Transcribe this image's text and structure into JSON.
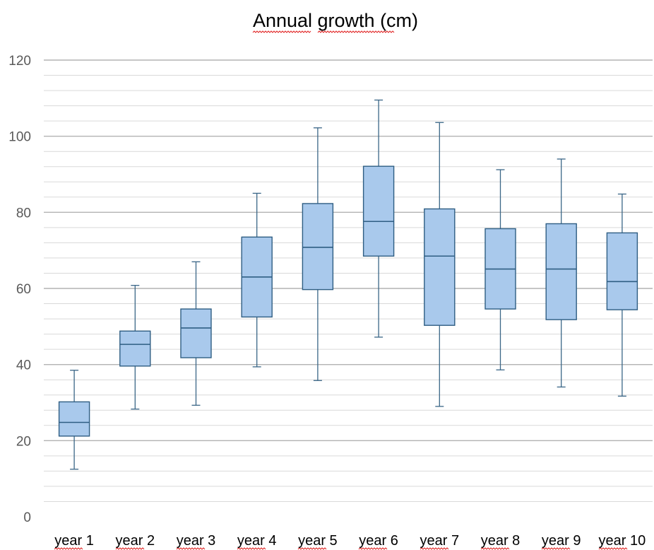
{
  "chart_data": {
    "type": "boxplot",
    "title": "Annual growth (cm)",
    "xlabel": "",
    "ylabel": "",
    "ylim": [
      0,
      120
    ],
    "y_major_ticks": [
      0,
      20,
      40,
      60,
      80,
      100,
      120
    ],
    "y_minor_step": 4,
    "grid": true,
    "legend": "none",
    "categories": [
      "year 1",
      "year 2",
      "year 3",
      "year 4",
      "year 5",
      "year 6",
      "year 7",
      "year 8",
      "year 9",
      "year 10"
    ],
    "series": [
      {
        "boxes": [
          {
            "min": 12.5,
            "q1": 21.2,
            "median": 24.8,
            "q3": 30.2,
            "max": 38.5
          },
          {
            "min": 28.3,
            "q1": 39.6,
            "median": 45.3,
            "q3": 48.8,
            "max": 60.8
          },
          {
            "min": 29.3,
            "q1": 41.8,
            "median": 49.6,
            "q3": 54.6,
            "max": 67.0
          },
          {
            "min": 39.4,
            "q1": 52.5,
            "median": 63.0,
            "q3": 73.5,
            "max": 85.0
          },
          {
            "min": 35.8,
            "q1": 59.7,
            "median": 70.8,
            "q3": 82.3,
            "max": 102.2
          },
          {
            "min": 47.2,
            "q1": 68.5,
            "median": 77.6,
            "q3": 92.1,
            "max": 109.5
          },
          {
            "min": 29.0,
            "q1": 50.3,
            "median": 68.5,
            "q3": 80.9,
            "max": 103.6
          },
          {
            "min": 38.6,
            "q1": 54.6,
            "median": 65.1,
            "q3": 75.7,
            "max": 91.2
          },
          {
            "min": 34.1,
            "q1": 51.8,
            "median": 65.1,
            "q3": 77.0,
            "max": 94.0
          },
          {
            "min": 31.7,
            "q1": 54.4,
            "median": 61.8,
            "q3": 74.6,
            "max": 84.8
          }
        ]
      }
    ]
  },
  "colors": {
    "box_fill": "#A9C9EC",
    "box_stroke": "#2F5E83",
    "whisker": "#3A6687",
    "grid_major": "#B3B3B3",
    "grid_minor": "#D9D9D9",
    "spellcheck": "#E02020"
  }
}
